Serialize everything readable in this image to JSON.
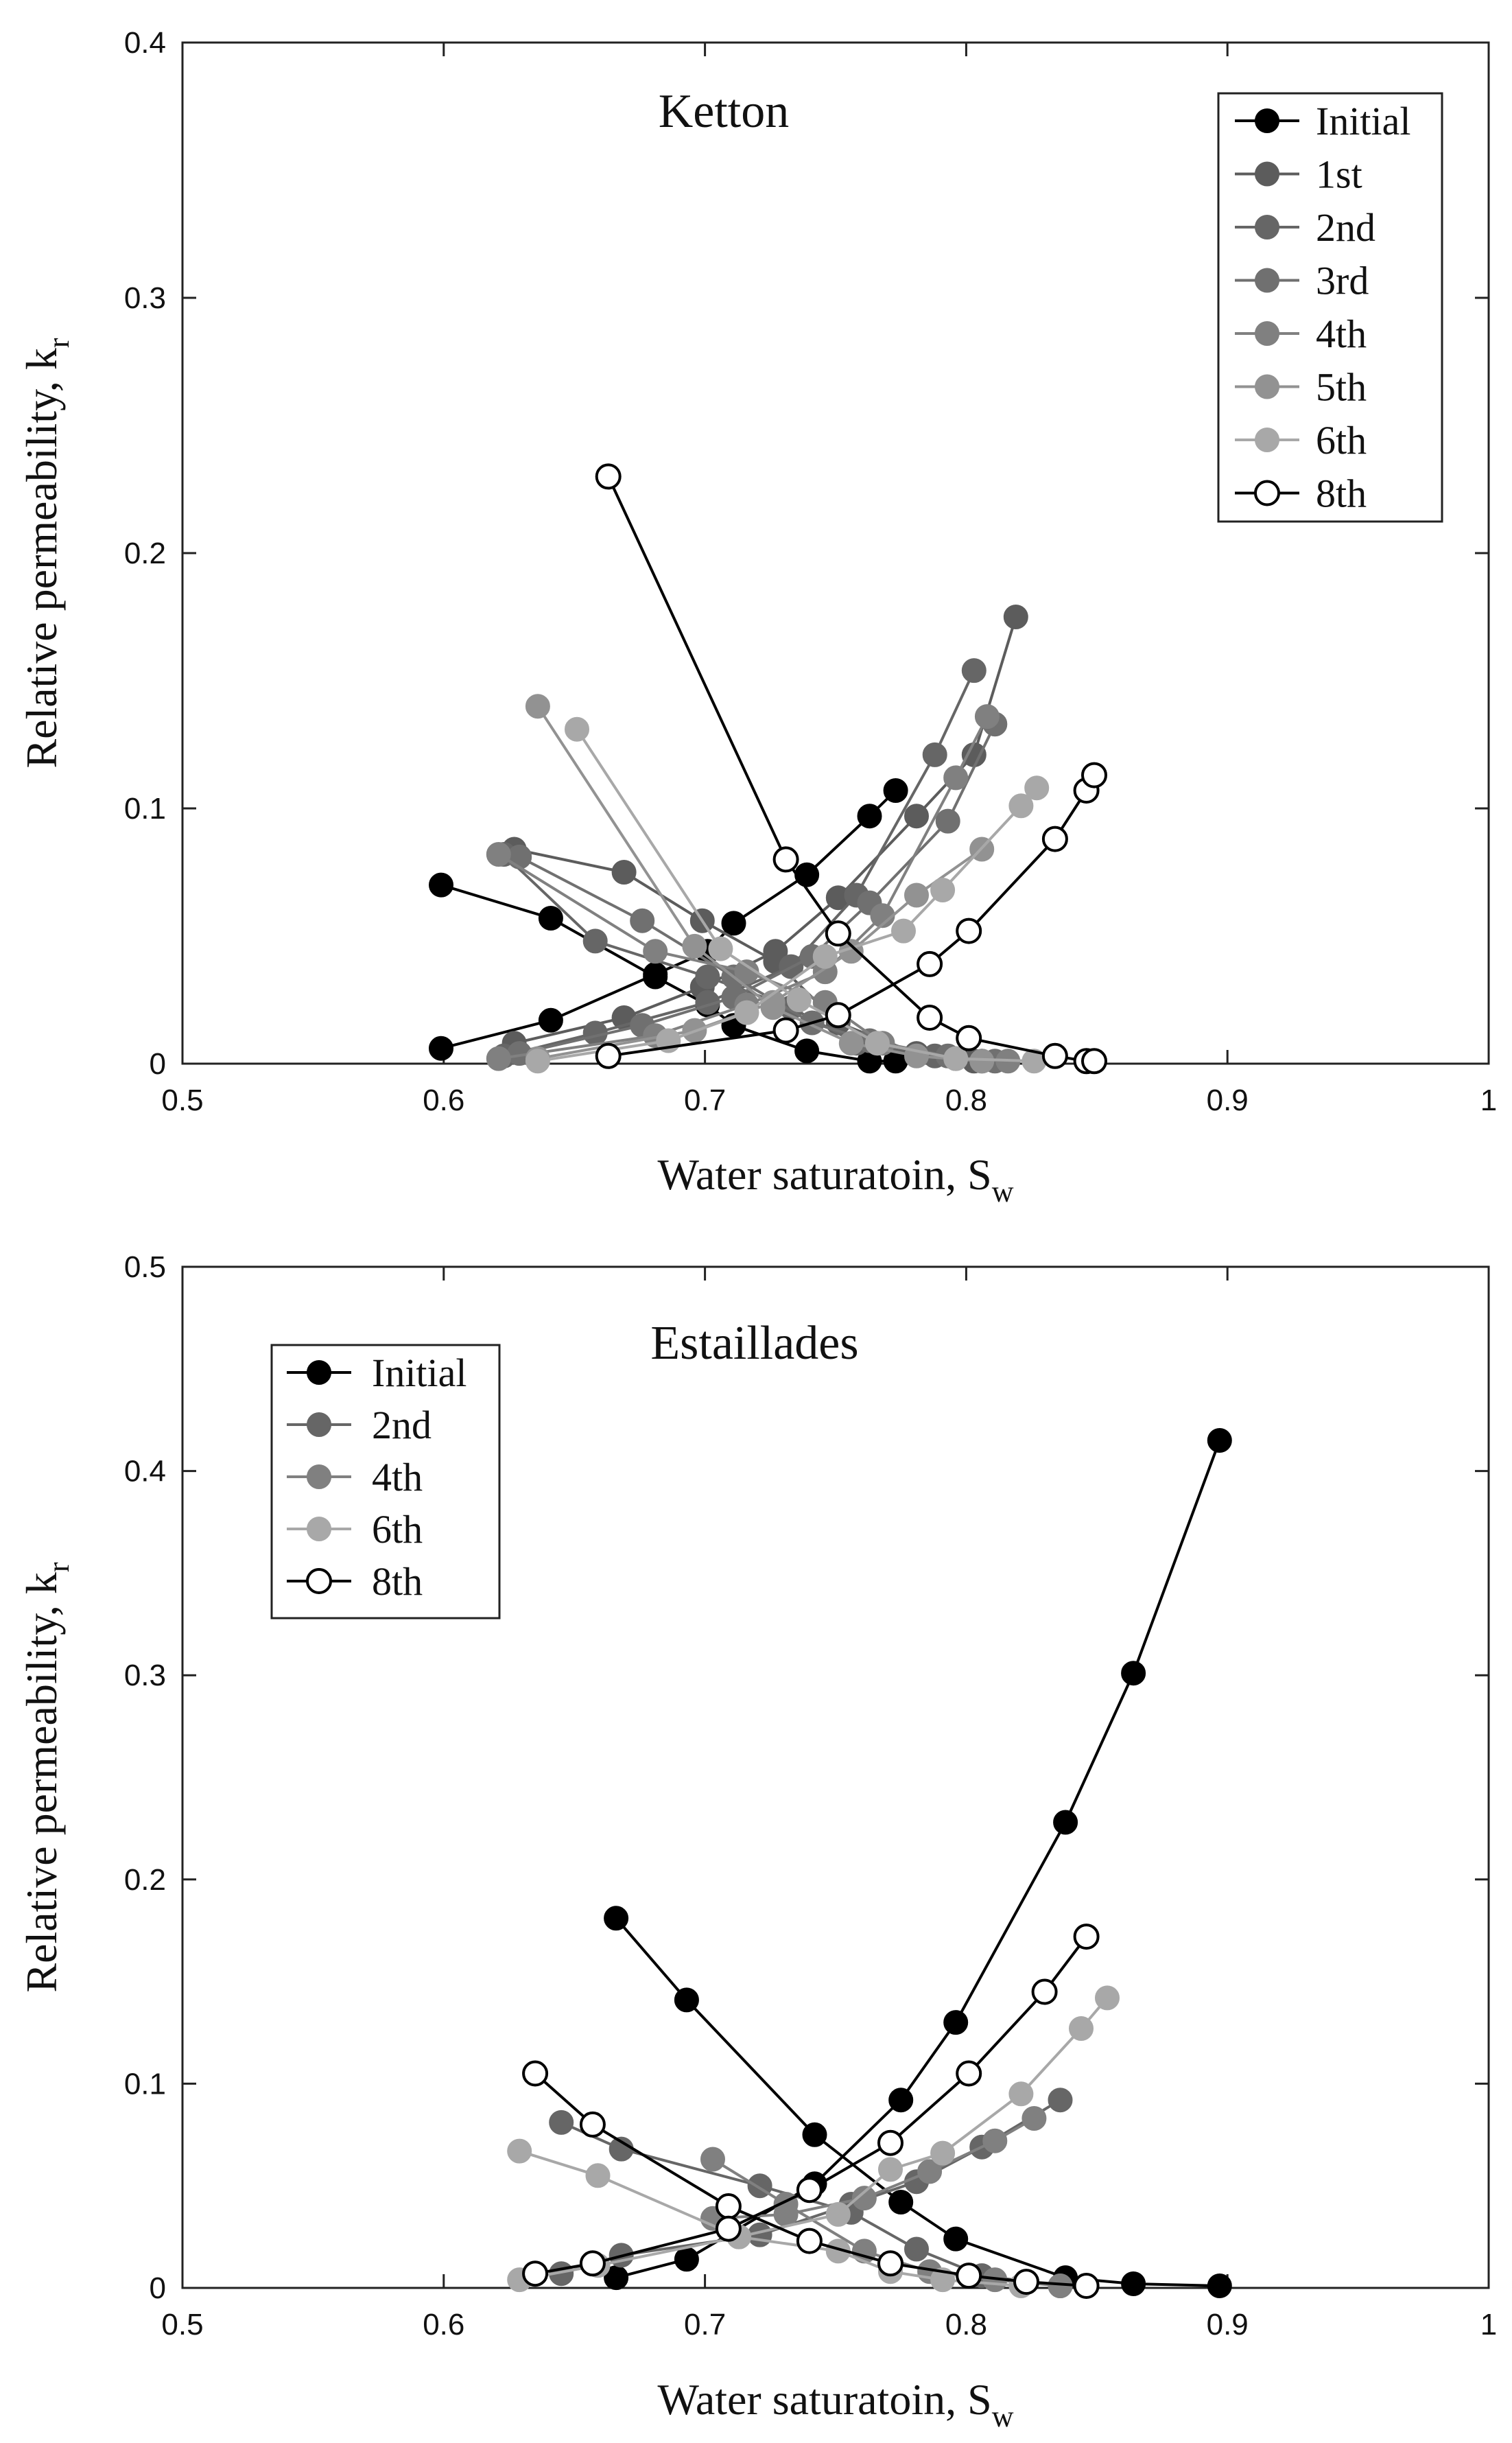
{
  "colors": {
    "initial": "#000000",
    "first": "#5c5c5c",
    "second": "#666666",
    "third": "#707070",
    "fourth": "#808080",
    "fifth": "#929292",
    "sixth": "#a8a8a8",
    "eighth": "#000000",
    "eighth_fill": "#ffffff"
  },
  "chart_data": [
    {
      "type": "line",
      "title": "Ketton",
      "xlabel": "Water saturatoin, S",
      "xlabel_sub": "w",
      "ylabel": "Relative permeability, k",
      "ylabel_sub": "r",
      "xlim": [
        0.5,
        1
      ],
      "ylim": [
        0,
        0.4
      ],
      "xticks": [
        0.5,
        0.6,
        0.7,
        0.8,
        0.9,
        1
      ],
      "xtick_labels": [
        "0.5",
        "0.6",
        "0.7",
        "0.8",
        "0.9",
        "1"
      ],
      "yticks": [
        0,
        0.1,
        0.2,
        0.3,
        0.4
      ],
      "ytick_labels": [
        "0",
        "0.1",
        "0.2",
        "0.3",
        "0.4"
      ],
      "legend_position": "top-right",
      "series": [
        {
          "name": "Initial",
          "color_key": "initial",
          "open": false,
          "curves": [
            [
              [
                0.599,
                0.07
              ],
              [
                0.641,
                0.057
              ],
              [
                0.681,
                0.034
              ],
              [
                0.701,
                0.023
              ],
              [
                0.711,
                0.015
              ],
              [
                0.739,
                0.005
              ],
              [
                0.763,
                0.001
              ],
              [
                0.773,
                0.001
              ]
            ],
            [
              [
                0.599,
                0.006
              ],
              [
                0.641,
                0.017
              ],
              [
                0.681,
                0.035
              ],
              [
                0.701,
                0.044
              ],
              [
                0.711,
                0.055
              ],
              [
                0.739,
                0.074
              ],
              [
                0.763,
                0.097
              ],
              [
                0.773,
                0.107
              ]
            ]
          ]
        },
        {
          "name": "1st",
          "color_key": "first",
          "open": false,
          "curves": [
            [
              [
                0.627,
                0.084
              ],
              [
                0.669,
                0.075
              ],
              [
                0.699,
                0.056
              ],
              [
                0.727,
                0.04
              ],
              [
                0.751,
                0.016
              ],
              [
                0.781,
                0.004
              ],
              [
                0.803,
                0.001
              ]
            ],
            [
              [
                0.627,
                0.008
              ],
              [
                0.669,
                0.018
              ],
              [
                0.699,
                0.03
              ],
              [
                0.727,
                0.044
              ],
              [
                0.751,
                0.065
              ],
              [
                0.781,
                0.097
              ],
              [
                0.803,
                0.121
              ],
              [
                0.819,
                0.175
              ]
            ]
          ]
        },
        {
          "name": "2nd",
          "color_key": "second",
          "open": false,
          "curves": [
            [
              [
                0.623,
                0.082
              ],
              [
                0.658,
                0.048
              ],
              [
                0.701,
                0.034
              ],
              [
                0.733,
                0.022
              ],
              [
                0.758,
                0.008
              ],
              [
                0.788,
                0.003
              ],
              [
                0.806,
                0.001
              ]
            ],
            [
              [
                0.623,
                0.003
              ],
              [
                0.658,
                0.012
              ],
              [
                0.701,
                0.024
              ],
              [
                0.733,
                0.038
              ],
              [
                0.758,
                0.066
              ],
              [
                0.788,
                0.121
              ],
              [
                0.803,
                0.154
              ]
            ]
          ]
        },
        {
          "name": "3rd",
          "color_key": "third",
          "open": false,
          "curves": [
            [
              [
                0.629,
                0.081
              ],
              [
                0.676,
                0.056
              ],
              [
                0.711,
                0.034
              ],
              [
                0.741,
                0.016
              ],
              [
                0.763,
                0.009
              ],
              [
                0.793,
                0.003
              ],
              [
                0.811,
                0.001
              ]
            ],
            [
              [
                0.629,
                0.004
              ],
              [
                0.676,
                0.015
              ],
              [
                0.711,
                0.026
              ],
              [
                0.741,
                0.042
              ],
              [
                0.763,
                0.063
              ],
              [
                0.793,
                0.095
              ],
              [
                0.811,
                0.133
              ]
            ]
          ]
        },
        {
          "name": "4th",
          "color_key": "fourth",
          "open": false,
          "curves": [
            [
              [
                0.621,
                0.082
              ],
              [
                0.681,
                0.044
              ],
              [
                0.716,
                0.036
              ],
              [
                0.746,
                0.024
              ],
              [
                0.768,
                0.008
              ],
              [
                0.796,
                0.002
              ],
              [
                0.816,
                0.001
              ]
            ],
            [
              [
                0.621,
                0.002
              ],
              [
                0.681,
                0.011
              ],
              [
                0.716,
                0.023
              ],
              [
                0.746,
                0.036
              ],
              [
                0.768,
                0.058
              ],
              [
                0.796,
                0.112
              ],
              [
                0.808,
                0.136
              ]
            ]
          ]
        },
        {
          "name": "5th",
          "color_key": "fifth",
          "open": false,
          "curves": [
            [
              [
                0.636,
                0.14
              ],
              [
                0.696,
                0.046
              ],
              [
                0.726,
                0.022
              ],
              [
                0.756,
                0.008
              ],
              [
                0.781,
                0.003
              ],
              [
                0.806,
                0.001
              ]
            ],
            [
              [
                0.636,
                0.002
              ],
              [
                0.696,
                0.013
              ],
              [
                0.726,
                0.024
              ],
              [
                0.756,
                0.044
              ],
              [
                0.781,
                0.066
              ],
              [
                0.806,
                0.084
              ]
            ]
          ]
        },
        {
          "name": "6th",
          "color_key": "sixth",
          "open": false,
          "curves": [
            [
              [
                0.651,
                0.131
              ],
              [
                0.706,
                0.045
              ],
              [
                0.736,
                0.025
              ],
              [
                0.766,
                0.008
              ],
              [
                0.796,
                0.002
              ],
              [
                0.826,
                0.001
              ]
            ],
            [
              [
                0.636,
                0.001
              ],
              [
                0.686,
                0.009
              ],
              [
                0.716,
                0.02
              ],
              [
                0.746,
                0.042
              ],
              [
                0.776,
                0.052
              ],
              [
                0.791,
                0.068
              ],
              [
                0.821,
                0.101
              ],
              [
                0.827,
                0.108
              ]
            ]
          ]
        },
        {
          "name": "8th",
          "color_key": "eighth",
          "open": true,
          "curves": [
            [
              [
                0.663,
                0.23
              ],
              [
                0.731,
                0.08
              ],
              [
                0.751,
                0.051
              ],
              [
                0.786,
                0.018
              ],
              [
                0.801,
                0.01
              ],
              [
                0.834,
                0.003
              ],
              [
                0.846,
                0.001
              ],
              [
                0.849,
                0.001
              ]
            ],
            [
              [
                0.663,
                0.003
              ],
              [
                0.731,
                0.013
              ],
              [
                0.751,
                0.019
              ],
              [
                0.786,
                0.039
              ],
              [
                0.801,
                0.052
              ],
              [
                0.834,
                0.088
              ],
              [
                0.846,
                0.107
              ],
              [
                0.849,
                0.113
              ]
            ]
          ]
        }
      ]
    },
    {
      "type": "line",
      "title": "Estaillades",
      "xlabel": "Water saturatoin, S",
      "xlabel_sub": "w",
      "ylabel": "Relative permeability, k",
      "ylabel_sub": "r",
      "xlim": [
        0.5,
        1
      ],
      "ylim": [
        0,
        0.5
      ],
      "xticks": [
        0.5,
        0.6,
        0.7,
        0.8,
        0.9,
        1
      ],
      "xtick_labels": [
        "0.5",
        "0.6",
        "0.7",
        "0.8",
        "0.9",
        "1"
      ],
      "yticks": [
        0,
        0.1,
        0.2,
        0.3,
        0.4,
        0.5
      ],
      "ytick_labels": [
        "0",
        "0.1",
        "0.2",
        "0.3",
        "0.4",
        "0.5"
      ],
      "legend_position": "top-left",
      "series": [
        {
          "name": "Initial",
          "color_key": "initial",
          "open": false,
          "curves": [
            [
              [
                0.666,
                0.181
              ],
              [
                0.693,
                0.141
              ],
              [
                0.742,
                0.075
              ],
              [
                0.775,
                0.042
              ],
              [
                0.796,
                0.024
              ],
              [
                0.838,
                0.005
              ],
              [
                0.864,
                0.002
              ],
              [
                0.897,
                0.001
              ]
            ],
            [
              [
                0.666,
                0.005
              ],
              [
                0.693,
                0.014
              ],
              [
                0.742,
                0.051
              ],
              [
                0.775,
                0.092
              ],
              [
                0.796,
                0.13
              ],
              [
                0.838,
                0.228
              ],
              [
                0.864,
                0.301
              ],
              [
                0.897,
                0.415
              ]
            ]
          ]
        },
        {
          "name": "2nd",
          "color_key": "second",
          "open": false,
          "curves": [
            [
              [
                0.645,
                0.081
              ],
              [
                0.668,
                0.068
              ],
              [
                0.721,
                0.05
              ],
              [
                0.756,
                0.037
              ],
              [
                0.781,
                0.019
              ],
              [
                0.806,
                0.006
              ],
              [
                0.836,
                0.001
              ]
            ],
            [
              [
                0.645,
                0.007
              ],
              [
                0.668,
                0.016
              ],
              [
                0.721,
                0.026
              ],
              [
                0.756,
                0.041
              ],
              [
                0.781,
                0.052
              ],
              [
                0.806,
                0.069
              ],
              [
                0.836,
                0.092
              ]
            ]
          ]
        },
        {
          "name": "4th",
          "color_key": "fourth",
          "open": false,
          "curves": [
            [
              [
                0.703,
                0.063
              ],
              [
                0.731,
                0.041
              ],
              [
                0.761,
                0.018
              ],
              [
                0.786,
                0.008
              ],
              [
                0.811,
                0.004
              ],
              [
                0.836,
                0.001
              ]
            ],
            [
              [
                0.703,
                0.034
              ],
              [
                0.731,
                0.036
              ],
              [
                0.761,
                0.044
              ],
              [
                0.786,
                0.057
              ],
              [
                0.811,
                0.072
              ],
              [
                0.826,
                0.083
              ]
            ]
          ]
        },
        {
          "name": "6th",
          "color_key": "sixth",
          "open": false,
          "curves": [
            [
              [
                0.629,
                0.067
              ],
              [
                0.659,
                0.055
              ],
              [
                0.713,
                0.025
              ],
              [
                0.751,
                0.018
              ],
              [
                0.771,
                0.008
              ],
              [
                0.791,
                0.004
              ],
              [
                0.821,
                0.001
              ]
            ],
            [
              [
                0.629,
                0.004
              ],
              [
                0.659,
                0.011
              ],
              [
                0.713,
                0.025
              ],
              [
                0.751,
                0.036
              ],
              [
                0.771,
                0.058
              ],
              [
                0.791,
                0.066
              ],
              [
                0.821,
                0.095
              ],
              [
                0.844,
                0.127
              ],
              [
                0.854,
                0.142
              ]
            ]
          ]
        },
        {
          "name": "8th",
          "color_key": "eighth",
          "open": true,
          "curves": [
            [
              [
                0.635,
                0.105
              ],
              [
                0.657,
                0.08
              ],
              [
                0.709,
                0.04
              ],
              [
                0.74,
                0.023
              ],
              [
                0.771,
                0.012
              ],
              [
                0.801,
                0.006
              ],
              [
                0.823,
                0.003
              ],
              [
                0.846,
                0.001
              ]
            ],
            [
              [
                0.635,
                0.007
              ],
              [
                0.657,
                0.012
              ],
              [
                0.709,
                0.029
              ],
              [
                0.74,
                0.048
              ],
              [
                0.771,
                0.071
              ],
              [
                0.801,
                0.105
              ],
              [
                0.83,
                0.145
              ],
              [
                0.846,
                0.172
              ]
            ]
          ]
        }
      ]
    }
  ]
}
